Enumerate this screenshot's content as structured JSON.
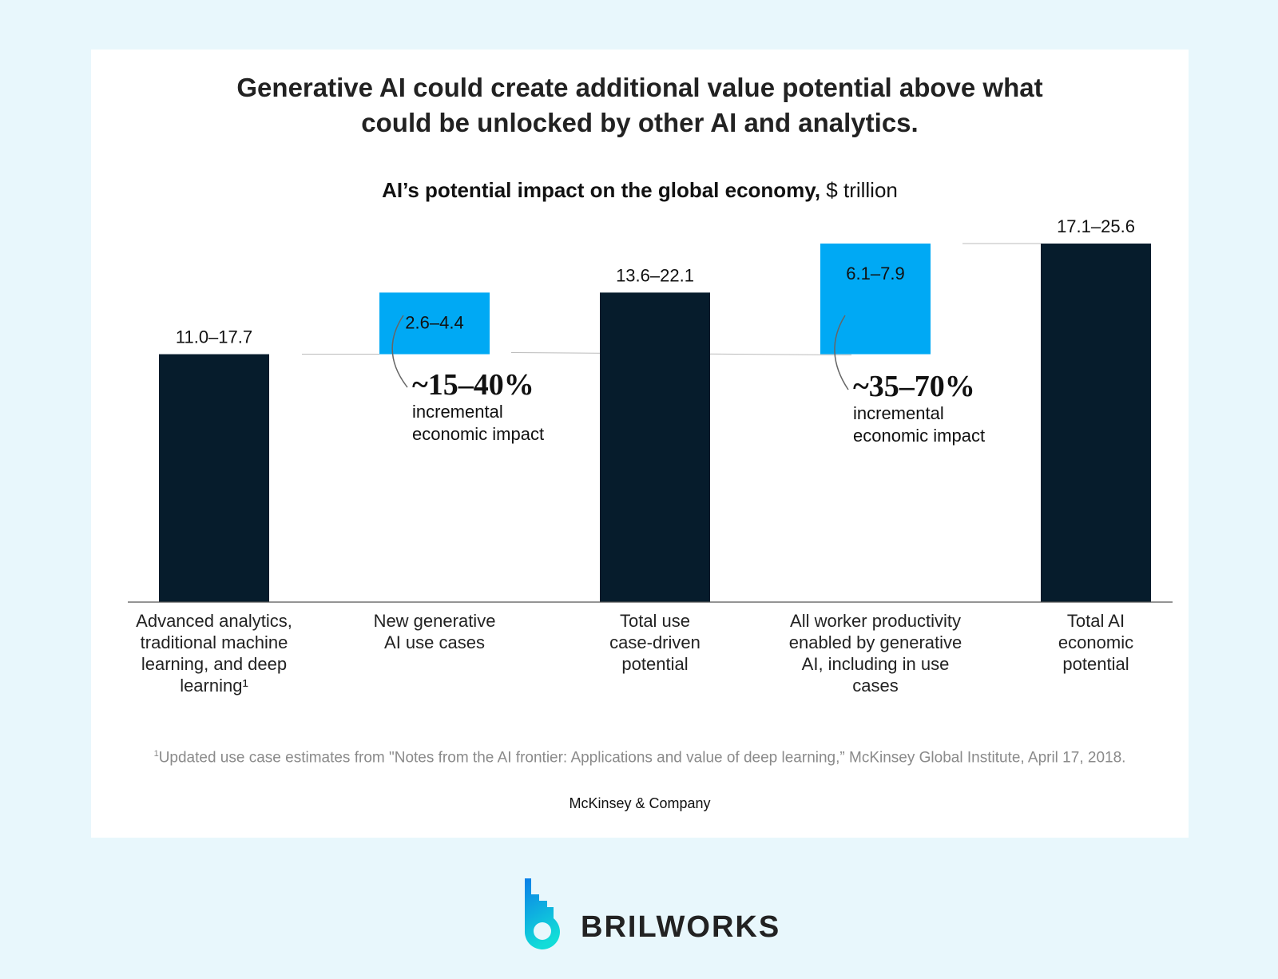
{
  "title_lines": [
    "Generative AI could create additional value potential above what",
    "could be unlocked by other AI and analytics."
  ],
  "subtitle_bold": "AI’s potential impact on the global economy,",
  "subtitle_unit": " $ trillion",
  "chart_data": {
    "type": "bar",
    "subtype": "waterfall",
    "title": "AI’s potential impact on the global economy, $ trillion",
    "categories": [
      "Advanced analytics, traditional machine learning, and deep learning¹",
      "New generative AI use cases",
      "Total use case-driven potential",
      "All worker productivity enabled by generative AI, including in use cases",
      "Total AI economic potential"
    ],
    "category_lines": [
      [
        "Advanced analytics,",
        "traditional machine",
        "learning, and deep",
        "learning¹"
      ],
      [
        "New generative",
        "AI use cases"
      ],
      [
        "Total use",
        "case-driven",
        "potential"
      ],
      [
        "All worker productivity",
        "enabled by generative",
        "AI, including in use",
        "cases"
      ],
      [
        "Total AI",
        "economic",
        "potential"
      ]
    ],
    "ranges": [
      [
        11.0,
        17.7
      ],
      [
        2.6,
        4.4
      ],
      [
        13.6,
        22.1
      ],
      [
        6.1,
        7.9
      ],
      [
        17.1,
        25.6
      ]
    ],
    "labels": [
      "11.0–17.7",
      "2.6–4.4",
      "13.6–22.1",
      "6.1–7.9",
      "17.1–25.6"
    ],
    "kinds": [
      "total",
      "increment",
      "total",
      "increment",
      "total"
    ],
    "increment_base": 17.7,
    "ylim": [
      0,
      25.6
    ],
    "colors": {
      "total": "#061c2c",
      "increment": "#00a9f4"
    },
    "annotations": [
      {
        "value": "~15–40%",
        "text": [
          "incremental",
          "economic impact"
        ]
      },
      {
        "value": "~35–70%",
        "text": [
          "incremental",
          "economic impact"
        ]
      }
    ],
    "grid": false
  },
  "footnote_mark": "1",
  "footnote": "Updated use case estimates from \"Notes from the AI frontier: Applications and value of deep learning,” McKinsey Global Institute, April 17, 2018.",
  "source": "McKinsey & Company",
  "brand": "BRILWORKS"
}
